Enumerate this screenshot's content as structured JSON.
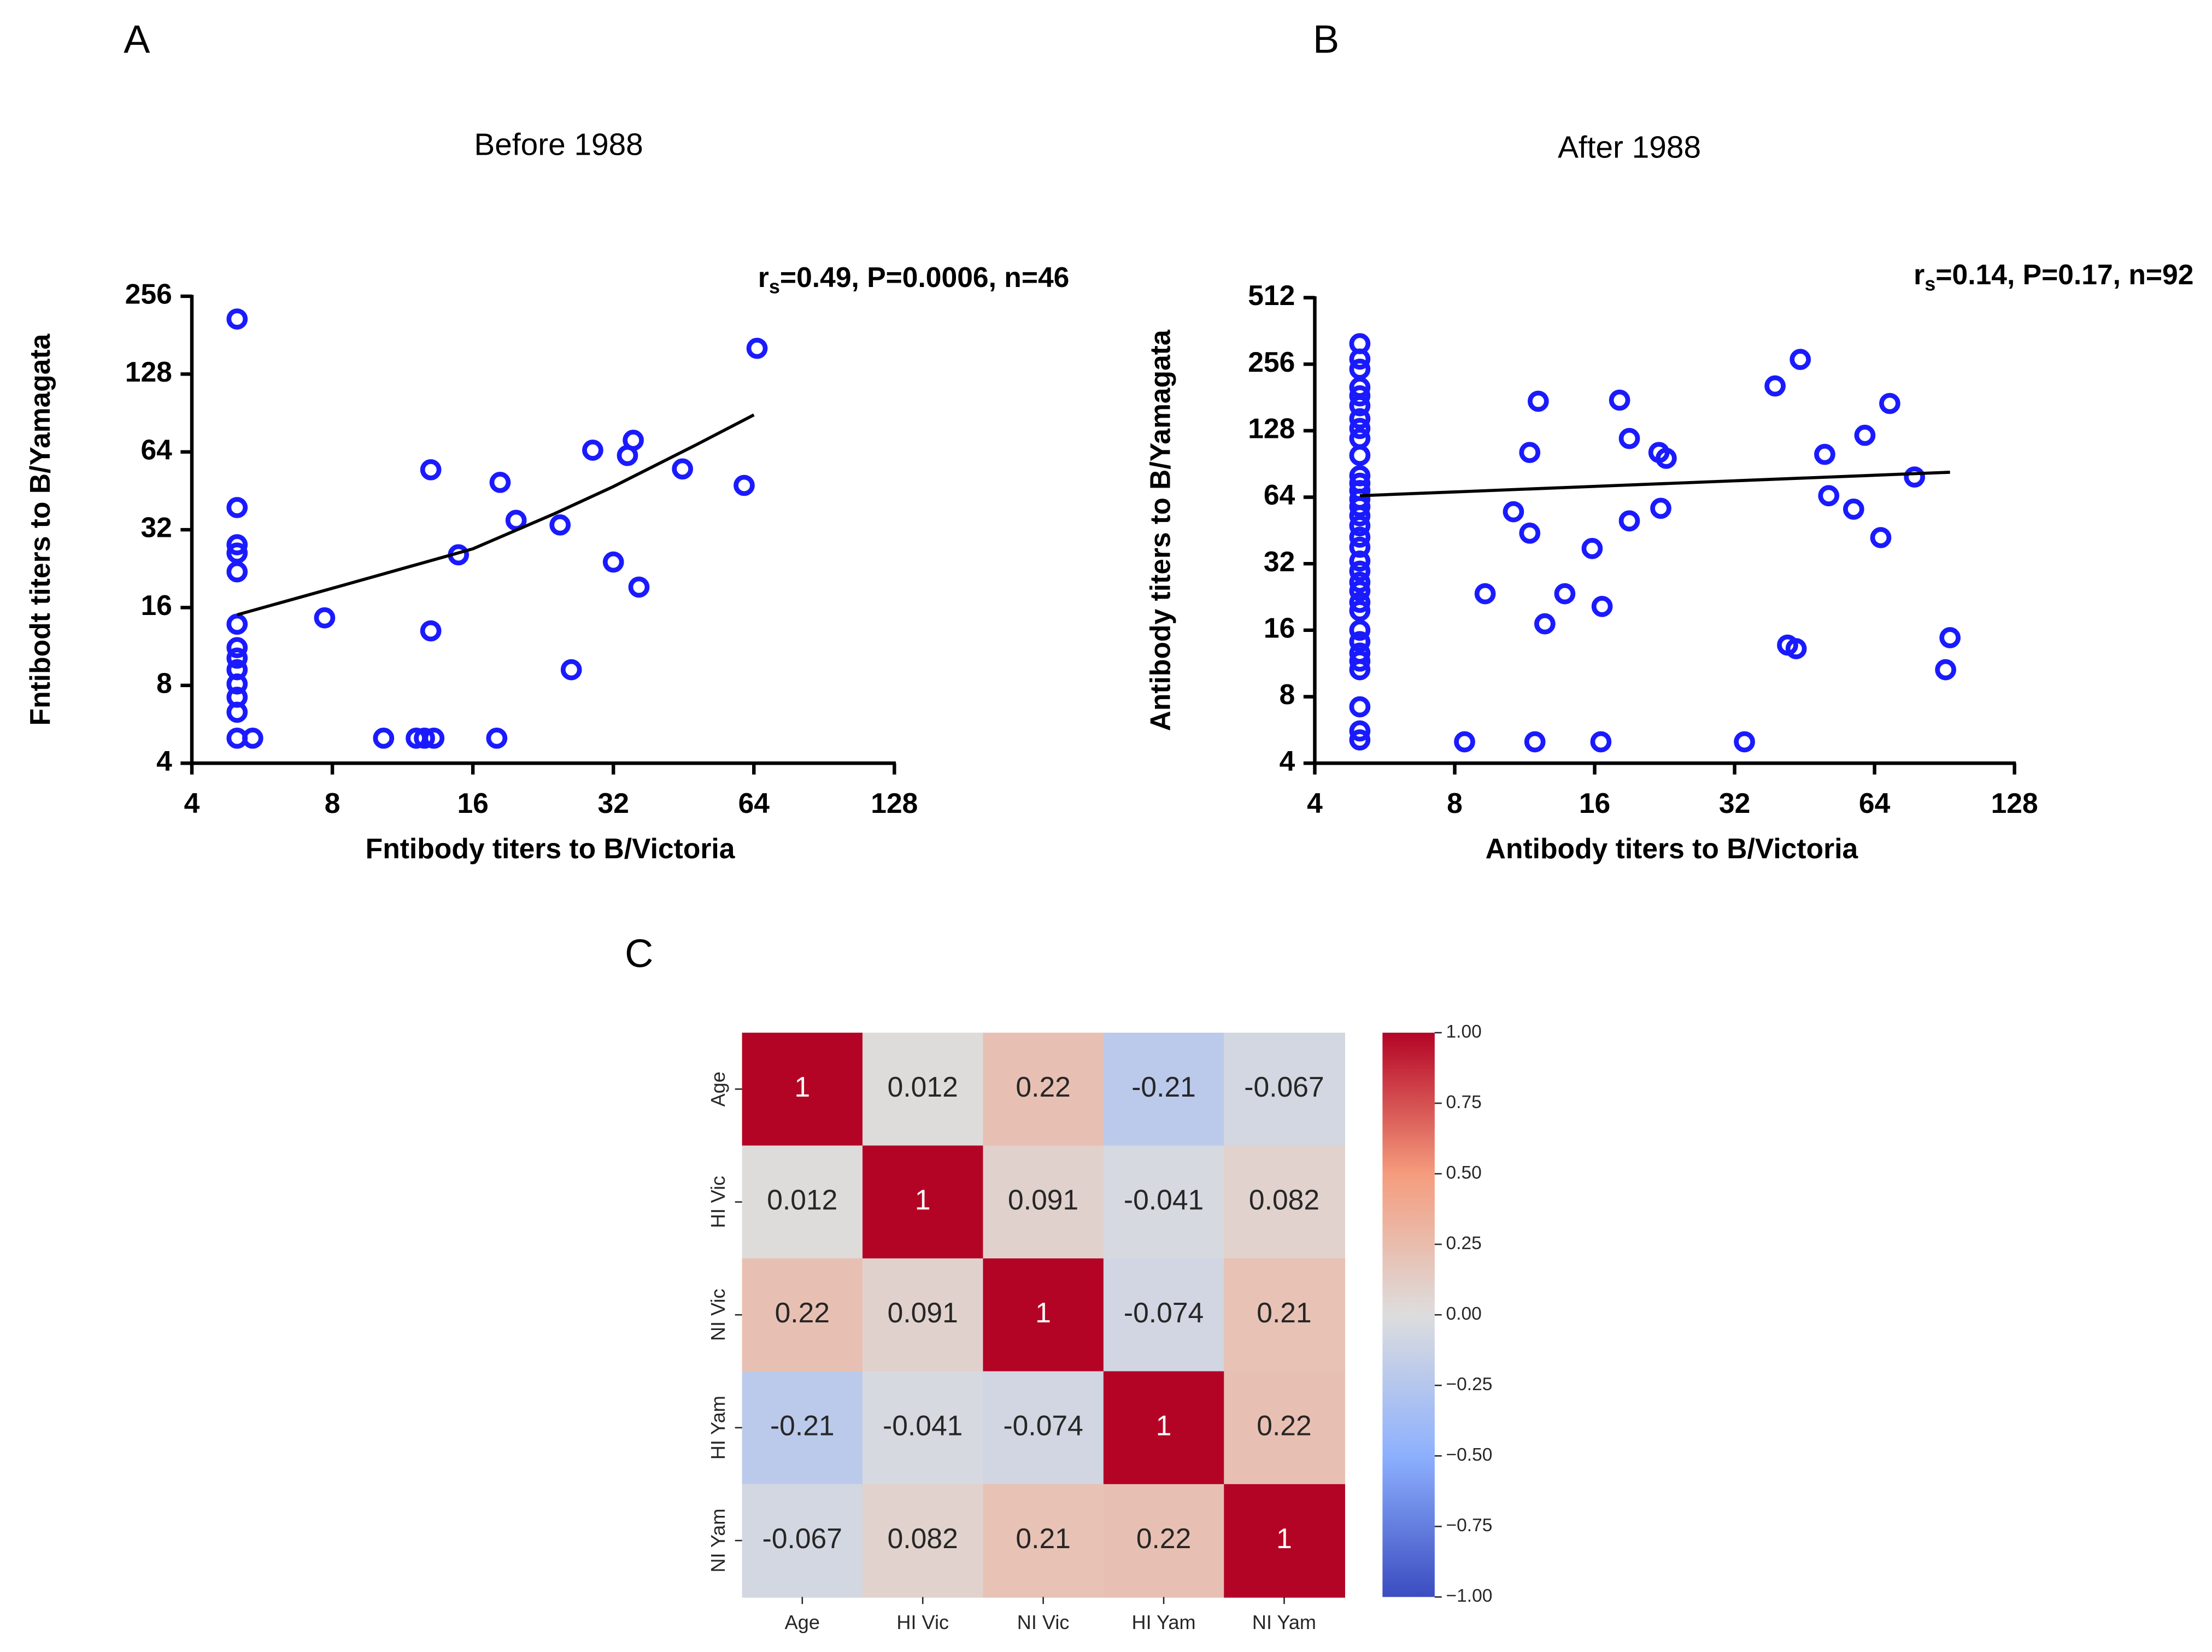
{
  "chart_data": [
    {
      "type": "scatter",
      "panel": "A",
      "title": "Before 1988",
      "annotation": {
        "r": "r",
        "sub": "s",
        "rest": "=0.49, P=0.0006, n=46"
      },
      "xlabel": "Fntibody titers to B/Victoria",
      "ylabel": "Fntibodt titers to B/Yamagata",
      "xscale": "log",
      "yscale": "log",
      "log_base": 2,
      "xlim": [
        4,
        128
      ],
      "xticks": [
        4,
        8,
        16,
        32,
        64,
        128
      ],
      "ylim": [
        4,
        256
      ],
      "yticks": [
        4,
        8,
        16,
        32,
        64,
        128,
        256
      ],
      "series": [
        {
          "kind": "points",
          "color": "#1a1aff",
          "x": [
            5,
            5,
            5,
            5,
            5,
            5,
            5,
            5,
            5,
            5,
            5,
            5,
            5,
            5.4,
            7.7,
            10.3,
            12.1,
            12.6,
            13.2,
            13,
            13,
            14.9,
            18.3,
            18,
            19.8,
            24.6,
            26,
            28.9,
            32,
            34.3,
            35.3,
            36.3,
            45,
            61,
            65
          ],
          "values": [
            209,
            39,
            28,
            26,
            22,
            13.8,
            11.2,
            10.2,
            9.2,
            8.1,
            7.2,
            6.3,
            5,
            5,
            14.6,
            5,
            5,
            5,
            5,
            54.6,
            13,
            25.6,
            48.8,
            5,
            34.8,
            33.4,
            9.2,
            65,
            24,
            62,
            71,
            19.2,
            55,
            47.5,
            161
          ]
        },
        {
          "kind": "line",
          "color": "#000000",
          "x": [
            5,
            8,
            16,
            24,
            32,
            48,
            64
          ],
          "values": [
            15,
            19,
            27,
            37,
            47,
            68,
            89
          ]
        }
      ]
    },
    {
      "type": "scatter",
      "panel": "B",
      "title": "After 1988",
      "annotation": {
        "r": "r",
        "sub": "s",
        "rest": "=0.14, P=0.17, n=92"
      },
      "xlabel": "Antibody titers to B/Victoria",
      "ylabel": "Antibody titers to B/Yamagata",
      "xscale": "log",
      "yscale": "log",
      "log_base": 2,
      "xlim": [
        4,
        128
      ],
      "xticks": [
        4,
        8,
        16,
        32,
        64,
        128
      ],
      "ylim": [
        4,
        512
      ],
      "yticks": [
        4,
        8,
        16,
        32,
        64,
        128,
        256,
        512
      ],
      "series": [
        {
          "kind": "points",
          "color": "#1a1aff",
          "x": [
            5,
            5,
            5,
            5,
            5,
            5,
            5,
            5,
            5,
            5,
            5,
            5,
            5,
            5,
            5,
            5,
            5,
            5,
            5,
            5,
            5,
            5,
            5,
            5,
            5,
            5,
            5,
            5,
            5,
            5,
            5,
            5,
            5,
            8.4,
            11.9,
            16.5,
            33.6,
            9.3,
            10.7,
            11.6,
            11.6,
            12.1,
            12.5,
            13.8,
            15.8,
            16.6,
            18.1,
            19,
            19,
            22,
            22.8,
            22.2,
            39.1,
            41.6,
            43.4,
            44.3,
            50,
            51,
            57.7,
            61,
            66,
            69,
            78,
            93,
            91
          ],
          "values": [
            317,
            270,
            243,
            201,
            184,
            166,
            145,
            131,
            118,
            99,
            80,
            74,
            68.6,
            62.7,
            58,
            52.7,
            47.5,
            42.2,
            38,
            32.9,
            29.6,
            26.4,
            24.1,
            21.4,
            19.6,
            16,
            14.2,
            12.6,
            11.6,
            10.6,
            7.2,
            5.6,
            5.1,
            5,
            5,
            5,
            5,
            23.4,
            55,
            44,
            102,
            174,
            17.1,
            23.4,
            37.5,
            20.5,
            176,
            118,
            50,
            102,
            96,
            57,
            204,
            13.7,
            13.2,
            269,
            100,
            65,
            56.5,
            122,
            42,
            170,
            79,
            14.8,
            10.6
          ]
        },
        {
          "kind": "line",
          "color": "#000000",
          "x": [
            5,
            93
          ],
          "values": [
            65,
            83
          ]
        }
      ]
    },
    {
      "type": "heatmap",
      "panel": "C",
      "colormap": "coolwarm",
      "row_labels": [
        "Age",
        "HI Vic",
        "NI Vic",
        "HI Yam",
        "NI Yam"
      ],
      "col_labels": [
        "Age",
        "HI Vic",
        "NI Vic",
        "HI Yam",
        "NI Yam"
      ],
      "values": [
        [
          1,
          0.012,
          0.22,
          -0.21,
          -0.067
        ],
        [
          0.012,
          1,
          0.091,
          -0.041,
          0.082
        ],
        [
          0.22,
          0.091,
          1,
          -0.074,
          0.21
        ],
        [
          -0.21,
          -0.041,
          -0.074,
          1,
          0.22
        ],
        [
          -0.067,
          0.082,
          0.21,
          0.22,
          1
        ]
      ],
      "vlim": [
        -1,
        1
      ],
      "colorbar_ticks": [
        {
          "value": 1,
          "label": "1.00"
        },
        {
          "value": 0.75,
          "label": "0.75"
        },
        {
          "value": 0.5,
          "label": "0.50"
        },
        {
          "value": 0.25,
          "label": "0.25"
        },
        {
          "value": 0,
          "label": "0.00"
        },
        {
          "value": -0.25,
          "label": "−0.25"
        },
        {
          "value": -0.5,
          "label": "−0.50"
        },
        {
          "value": -0.75,
          "label": "−0.75"
        },
        {
          "value": -1,
          "label": "−1.00"
        }
      ]
    }
  ]
}
